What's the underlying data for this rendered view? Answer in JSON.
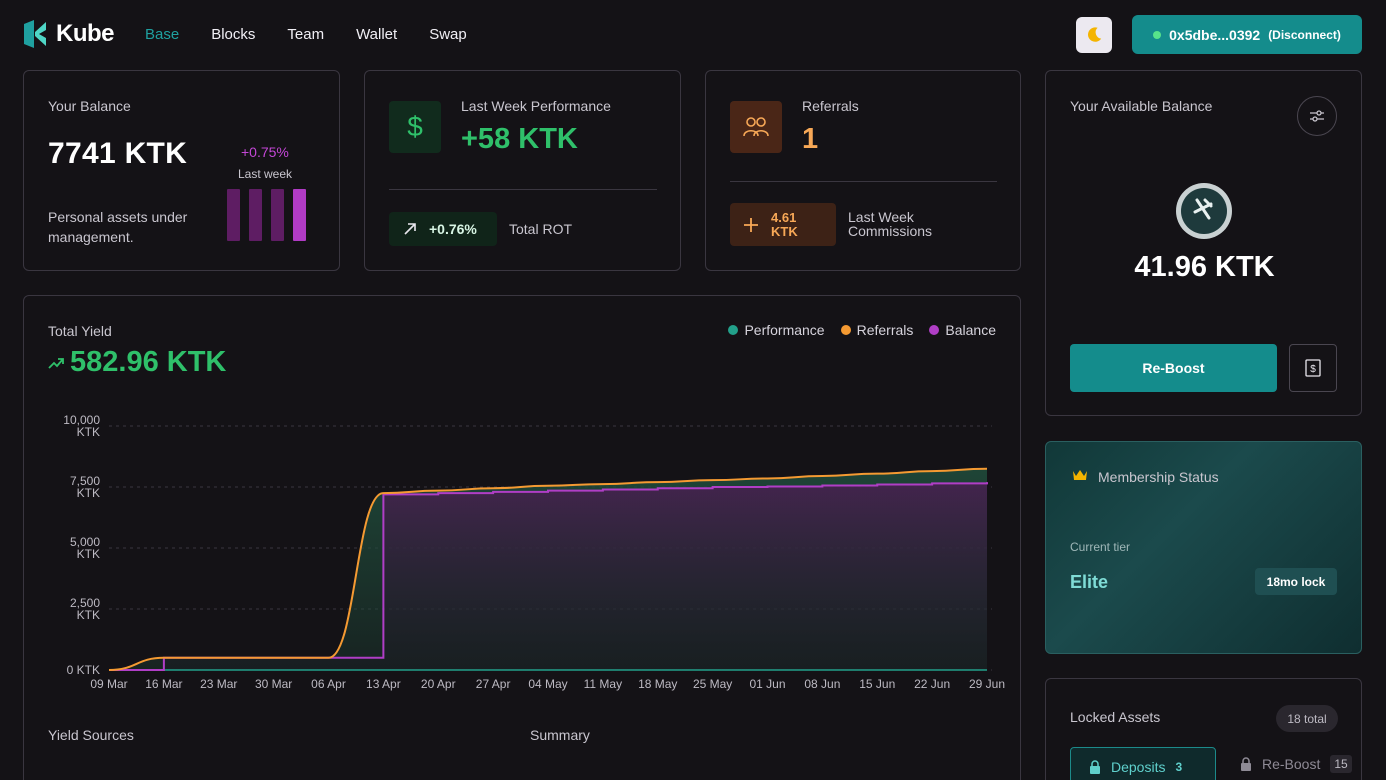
{
  "app": {
    "name": "Kube"
  },
  "nav": {
    "items": [
      "Base",
      "Blocks",
      "Team",
      "Wallet",
      "Swap"
    ],
    "active": "Base"
  },
  "wallet": {
    "address": "0x5dbe...0392",
    "disconnect": "(Disconnect)"
  },
  "balance_card": {
    "title": "Your Balance",
    "value": "7741 KTK",
    "change": "+0.75%",
    "period": "Last week",
    "desc": "Personal assets under management.",
    "bars": [
      1,
      1,
      1,
      1
    ],
    "colors": {
      "bar_dim": "#5e1d63",
      "bar_active": "#b13bc5",
      "change": "#c347d6"
    }
  },
  "performance_card": {
    "title": "Last Week Performance",
    "value": "+58 KTK",
    "icon": "dollar-icon",
    "roi_change": "+0.76%",
    "roi_label": "Total ROT",
    "colors": {
      "value": "#2fc06a"
    }
  },
  "referrals_card": {
    "title": "Referrals",
    "value": "1",
    "icon": "users-icon",
    "commission_amount": "4.61",
    "commission_unit": "KTK",
    "commission_label": "Last Week Commissions",
    "colors": {
      "value": "#f7a857"
    }
  },
  "available_card": {
    "title": "Your Available Balance",
    "value": "41.96 KTK",
    "reboost": "Re-Boost",
    "icons": [
      "settings-sliders-icon",
      "token-icon",
      "cash-icon"
    ]
  },
  "membership": {
    "title": "Membership Status",
    "tier_label": "Current tier",
    "tier": "Elite",
    "lock": "18mo lock",
    "icon": "crown-icon"
  },
  "locked_assets": {
    "title": "Locked Assets",
    "total": "18 total",
    "tabs": [
      {
        "label": "Deposits",
        "count": "3",
        "active": true
      },
      {
        "label": "Re-Boost",
        "count": "15",
        "active": false
      }
    ]
  },
  "yield_card": {
    "title": "Total Yield",
    "value": "582.96 KTK",
    "sections": {
      "sources": "Yield Sources",
      "summary": "Summary"
    }
  },
  "chart_data": {
    "type": "line",
    "title": "Total Yield",
    "y_ticks": [
      "10,000 KTK",
      "7,500 KTK",
      "5,000 KTK",
      "2,500 KTK",
      "0 KTK"
    ],
    "ylim": [
      0,
      10000
    ],
    "x_ticks": [
      "09 Mar",
      "16 Mar",
      "23 Mar",
      "30 Mar",
      "06 Apr",
      "13 Apr",
      "20 Apr",
      "27 Apr",
      "04 May",
      "11 May",
      "18 May",
      "25 May",
      "01 Jun",
      "08 Jun",
      "15 Jun",
      "22 Jun",
      "29 Jun"
    ],
    "legend": "top-right",
    "grid": true,
    "series": [
      {
        "name": "Performance",
        "color": "#22a08a",
        "values": [
          0,
          0,
          0,
          0,
          0,
          0,
          0,
          0,
          0,
          0,
          0,
          0,
          0,
          0,
          0,
          0,
          0
        ]
      },
      {
        "name": "Referrals",
        "color": "#f59a32",
        "values": [
          0,
          500,
          500,
          500,
          500,
          7250,
          7350,
          7450,
          7550,
          7620,
          7700,
          7780,
          7850,
          7950,
          8050,
          8150,
          8250
        ]
      },
      {
        "name": "Balance",
        "color": "#b03ec6",
        "values": [
          0,
          500,
          500,
          500,
          500,
          7200,
          7250,
          7300,
          7350,
          7400,
          7450,
          7500,
          7520,
          7560,
          7600,
          7650,
          7700
        ]
      }
    ]
  }
}
